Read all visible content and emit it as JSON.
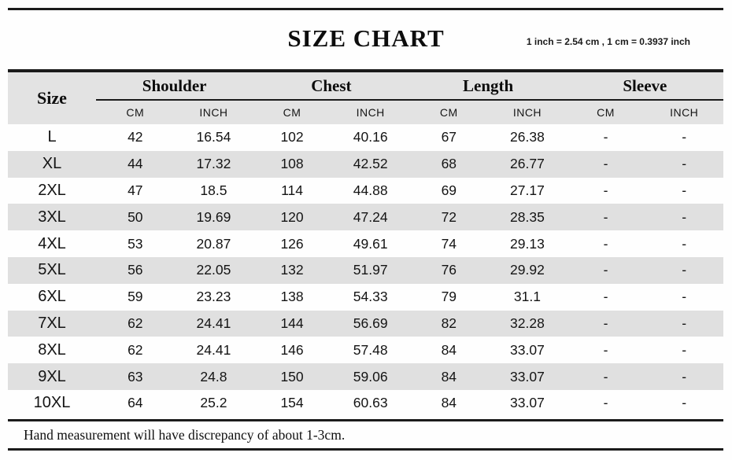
{
  "header": {
    "title": "SIZE CHART",
    "conversion_note": "1 inch = 2.54 cm , 1 cm = 0.3937 inch"
  },
  "table": {
    "size_label": "Size",
    "groups": [
      {
        "label": "Shoulder",
        "units": [
          "CM",
          "INCH"
        ]
      },
      {
        "label": "Chest",
        "units": [
          "CM",
          "INCH"
        ]
      },
      {
        "label": "Length",
        "units": [
          "CM",
          "INCH"
        ]
      },
      {
        "label": "Sleeve",
        "units": [
          "CM",
          "INCH"
        ]
      }
    ],
    "rows": [
      [
        "L",
        "42",
        "16.54",
        "102",
        "40.16",
        "67",
        "26.38",
        "-",
        "-"
      ],
      [
        "XL",
        "44",
        "17.32",
        "108",
        "42.52",
        "68",
        "26.77",
        "-",
        "-"
      ],
      [
        "2XL",
        "47",
        "18.5",
        "114",
        "44.88",
        "69",
        "27.17",
        "-",
        "-"
      ],
      [
        "3XL",
        "50",
        "19.69",
        "120",
        "47.24",
        "72",
        "28.35",
        "-",
        "-"
      ],
      [
        "4XL",
        "53",
        "20.87",
        "126",
        "49.61",
        "74",
        "29.13",
        "-",
        "-"
      ],
      [
        "5XL",
        "56",
        "22.05",
        "132",
        "51.97",
        "76",
        "29.92",
        "-",
        "-"
      ],
      [
        "6XL",
        "59",
        "23.23",
        "138",
        "54.33",
        "79",
        "31.1",
        "-",
        "-"
      ],
      [
        "7XL",
        "62",
        "24.41",
        "144",
        "56.69",
        "82",
        "32.28",
        "-",
        "-"
      ],
      [
        "8XL",
        "62",
        "24.41",
        "146",
        "57.48",
        "84",
        "33.07",
        "-",
        "-"
      ],
      [
        "9XL",
        "63",
        "24.8",
        "150",
        "59.06",
        "84",
        "33.07",
        "-",
        "-"
      ],
      [
        "10XL",
        "64",
        "25.2",
        "154",
        "60.63",
        "84",
        "33.07",
        "-",
        "-"
      ]
    ]
  },
  "footer": {
    "note": "Hand measurement will have discrepancy of about 1-3cm."
  },
  "colors": {
    "rule": "#1b1b1b",
    "header_shade": "#e3e3e3",
    "row_shade": "#e0e0e0"
  }
}
